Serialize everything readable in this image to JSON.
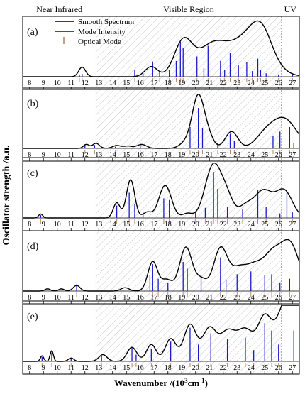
{
  "chart_data": {
    "type": "line",
    "regions": [
      {
        "label": "Near Infrared",
        "from": 7.5,
        "to": 12.8
      },
      {
        "label": "Visible Region",
        "from": 12.8,
        "to": 26.2
      },
      {
        "label": "UV",
        "from": 26.2,
        "to": 27.5
      }
    ],
    "xticks": [
      8,
      9,
      10,
      11,
      12,
      13,
      14,
      15,
      16,
      17,
      18,
      19,
      20,
      21,
      22,
      23,
      24,
      25,
      26,
      27
    ],
    "xlim": [
      7.5,
      27.5
    ],
    "ylabel": "Oscillator strength /a.u.",
    "xlabel": "Wavenumber /(10",
    "xlabel_sup": "3",
    "xlabel_tail": "cm",
    "xlabel_sup2": "-1",
    "xlabel_close": ")",
    "legend": {
      "placement": "top-left",
      "entries": [
        {
          "label": "Smooth Spectrum",
          "style": "line",
          "color": "#000000"
        },
        {
          "label": "Mode Intensity",
          "style": "line",
          "color": "#0000cc"
        },
        {
          "label": "Optical Mode",
          "style": "tick",
          "color": "#b8876a"
        }
      ]
    },
    "colors": {
      "spectrum": "#000000",
      "modes": "#1a1acc",
      "optical": "#b8876a",
      "hatch": "#c8c8c8"
    },
    "panels": [
      {
        "label": "(a)",
        "peaks": [
          [
            11.8,
            0.17,
            0.25
          ],
          [
            16.8,
            0.18,
            0.45
          ],
          [
            19.1,
            0.6,
            0.65
          ],
          [
            21.2,
            0.55,
            1.1
          ],
          [
            24.0,
            0.72,
            1.3
          ],
          [
            24.8,
            0.35,
            0.7
          ]
        ],
        "sticks": [
          [
            11.6,
            0.04
          ],
          [
            11.8,
            0.05
          ],
          [
            15.6,
            0.12
          ],
          [
            16.2,
            0.06
          ],
          [
            16.9,
            0.27
          ],
          [
            17.4,
            0.1
          ],
          [
            18.1,
            0.12
          ],
          [
            18.6,
            0.28
          ],
          [
            18.9,
            0.62
          ],
          [
            19.1,
            0.52
          ],
          [
            20.1,
            0.36
          ],
          [
            20.6,
            0.15
          ],
          [
            20.9,
            0.55
          ],
          [
            21.8,
            0.28
          ],
          [
            22.1,
            0.12
          ],
          [
            22.5,
            0.42
          ],
          [
            23.1,
            0.2
          ],
          [
            23.7,
            0.26
          ],
          [
            24.1,
            0.1
          ],
          [
            24.5,
            0.32
          ],
          [
            24.7,
            0.12
          ],
          [
            25.1,
            0.06
          ],
          [
            26.0,
            0.04
          ],
          [
            27.0,
            0.06
          ]
        ]
      },
      {
        "label": "(b)",
        "peaks": [
          [
            12.1,
            0.07,
            0.2
          ],
          [
            12.8,
            0.09,
            0.25
          ],
          [
            14.3,
            0.05,
            0.3
          ],
          [
            15.1,
            0.04,
            0.3
          ],
          [
            16.1,
            0.07,
            0.35
          ],
          [
            19.2,
            0.08,
            0.4
          ],
          [
            20.2,
            0.95,
            0.45
          ],
          [
            21.0,
            0.15,
            0.35
          ],
          [
            22.6,
            0.3,
            0.45
          ],
          [
            25.0,
            0.2,
            0.7
          ],
          [
            26.4,
            0.52,
            0.9
          ]
        ],
        "sticks": [
          [
            12.0,
            0.07
          ],
          [
            12.7,
            0.06
          ],
          [
            14.2,
            0.03
          ],
          [
            16.0,
            0.08
          ],
          [
            19.6,
            0.38
          ],
          [
            20.2,
            0.72
          ],
          [
            20.5,
            0.36
          ],
          [
            21.6,
            0.1
          ],
          [
            22.5,
            0.26
          ],
          [
            22.8,
            0.14
          ],
          [
            25.6,
            0.22
          ],
          [
            26.1,
            0.3
          ],
          [
            26.8,
            0.38
          ],
          [
            27.1,
            0.1
          ]
        ]
      },
      {
        "label": "(c)",
        "peaks": [
          [
            8.8,
            0.07,
            0.15
          ],
          [
            14.3,
            0.27,
            0.25
          ],
          [
            15.3,
            0.68,
            0.3
          ],
          [
            16.5,
            0.1,
            0.3
          ],
          [
            17.8,
            0.58,
            0.45
          ],
          [
            19.4,
            0.08,
            0.35
          ],
          [
            21.3,
            0.95,
            0.6
          ],
          [
            22.3,
            0.3,
            0.45
          ],
          [
            23.6,
            0.2,
            0.5
          ],
          [
            24.9,
            0.48,
            0.65
          ],
          [
            26.4,
            0.48,
            0.6
          ]
        ],
        "sticks": [
          [
            8.8,
            0.05
          ],
          [
            14.3,
            0.22
          ],
          [
            15.2,
            0.45
          ],
          [
            15.6,
            0.25
          ],
          [
            16.2,
            0.1
          ],
          [
            17.7,
            0.35
          ],
          [
            18.1,
            0.32
          ],
          [
            20.0,
            0.12
          ],
          [
            20.7,
            0.18
          ],
          [
            21.3,
            0.82
          ],
          [
            21.6,
            0.52
          ],
          [
            22.3,
            0.2
          ],
          [
            23.4,
            0.15
          ],
          [
            24.5,
            0.5
          ],
          [
            25.1,
            0.2
          ],
          [
            26.1,
            0.08
          ],
          [
            26.6,
            0.45
          ],
          [
            27.0,
            0.1
          ]
        ]
      },
      {
        "label": "(d)",
        "peaks": [
          [
            9.3,
            0.04,
            0.2
          ],
          [
            10.3,
            0.04,
            0.2
          ],
          [
            11.4,
            0.1,
            0.25
          ],
          [
            14.9,
            0.06,
            0.3
          ],
          [
            16.9,
            0.52,
            0.35
          ],
          [
            17.9,
            0.2,
            0.4
          ],
          [
            19.3,
            0.78,
            0.45
          ],
          [
            20.4,
            0.2,
            0.4
          ],
          [
            21.8,
            0.75,
            0.5
          ],
          [
            23.1,
            0.38,
            0.6
          ],
          [
            24.3,
            0.4,
            0.6
          ],
          [
            25.5,
            0.55,
            0.6
          ],
          [
            26.8,
            0.85,
            0.7
          ]
        ],
        "sticks": [
          [
            11.4,
            0.12
          ],
          [
            16.7,
            0.28
          ],
          [
            16.9,
            0.48
          ],
          [
            17.3,
            0.22
          ],
          [
            18.0,
            0.15
          ],
          [
            19.1,
            0.52
          ],
          [
            19.4,
            0.4
          ],
          [
            20.4,
            0.26
          ],
          [
            21.8,
            0.6
          ],
          [
            22.2,
            0.2
          ],
          [
            23.0,
            0.3
          ],
          [
            24.0,
            0.35
          ],
          [
            25.0,
            0.28
          ],
          [
            25.5,
            0.3
          ],
          [
            26.1,
            0.15
          ],
          [
            26.8,
            0.22
          ]
        ]
      },
      {
        "label": "(e)",
        "peaks": [
          [
            8.9,
            0.1,
            0.12
          ],
          [
            9.6,
            0.19,
            0.12
          ],
          [
            11.0,
            0.06,
            0.2
          ],
          [
            13.3,
            0.12,
            0.3
          ],
          [
            15.4,
            0.25,
            0.35
          ],
          [
            16.8,
            0.3,
            0.35
          ],
          [
            18.2,
            0.4,
            0.4
          ],
          [
            19.6,
            0.65,
            0.45
          ],
          [
            21.0,
            0.58,
            0.5
          ],
          [
            22.3,
            0.5,
            0.55
          ],
          [
            23.6,
            0.55,
            0.6
          ],
          [
            25.0,
            0.75,
            0.5
          ],
          [
            26.4,
            0.9,
            0.6
          ],
          [
            27.3,
            1.0,
            0.5
          ]
        ],
        "sticks": [
          [
            8.9,
            0.08
          ],
          [
            9.6,
            0.15
          ],
          [
            11.0,
            0.05
          ],
          [
            13.2,
            0.1
          ],
          [
            15.4,
            0.25
          ],
          [
            15.7,
            0.12
          ],
          [
            16.8,
            0.22
          ],
          [
            18.2,
            0.35
          ],
          [
            19.6,
            0.6
          ],
          [
            20.2,
            0.3
          ],
          [
            21.1,
            0.5
          ],
          [
            22.3,
            0.4
          ],
          [
            23.6,
            0.42
          ],
          [
            24.2,
            0.2
          ],
          [
            25.0,
            0.68
          ],
          [
            25.5,
            0.55
          ],
          [
            26.0,
            0.3
          ],
          [
            27.1,
            0.55
          ]
        ]
      }
    ]
  }
}
